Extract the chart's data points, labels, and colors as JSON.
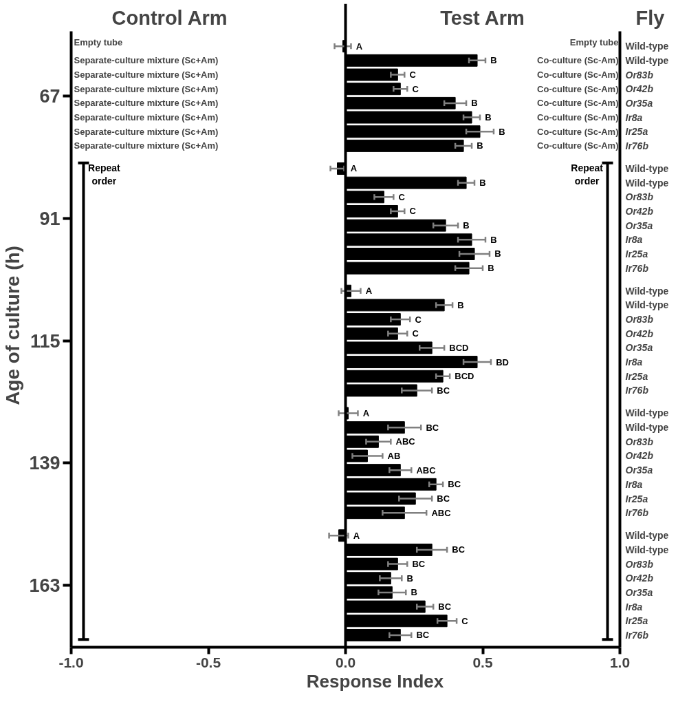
{
  "chart_data": {
    "type": "bar",
    "orientation": "horizontal",
    "xlabel": "Response Index",
    "ylabel": "Age of culture (h)",
    "xlim": [
      -1,
      1
    ],
    "xticks": [
      {
        "value": -1,
        "label": "-1.0"
      },
      {
        "value": -0.5,
        "label": "-0.5"
      },
      {
        "value": 0,
        "label": "0.0"
      },
      {
        "value": 0.5,
        "label": "0.5"
      },
      {
        "value": 1,
        "label": "1.0"
      }
    ],
    "categories": [
      "Wild-type",
      "Wild-type",
      "Or83b",
      "Or42b",
      "Or35a",
      "Ir8a",
      "Ir25a",
      "Ir76b",
      "Wild-type",
      "Wild-type",
      "Or83b",
      "Or42b",
      "Or35a",
      "Ir8a",
      "Ir25a",
      "Ir76b",
      "Wild-type",
      "Wild-type",
      "Or83b",
      "Or42b",
      "Or35a",
      "Ir8a",
      "Ir25a",
      "Ir76b",
      "Wild-type",
      "Wild-type",
      "Or83b",
      "Or42b",
      "Or35a",
      "Ir8a",
      "Ir25a",
      "Ir76b",
      "Wild-type",
      "Wild-type",
      "Or83b",
      "Or42b",
      "Or35a",
      "Ir8a",
      "Ir25a",
      "Ir76b"
    ],
    "values": [
      -0.01,
      0.48,
      0.19,
      0.2,
      0.4,
      0.46,
      0.49,
      0.43,
      -0.03,
      0.44,
      0.14,
      0.19,
      0.365,
      0.46,
      0.47,
      0.45,
      0.02,
      0.36,
      0.2,
      0.19,
      0.315,
      0.48,
      0.355,
      0.26,
      0.01,
      0.215,
      0.12,
      0.08,
      0.2,
      0.33,
      0.255,
      0.215,
      -0.025,
      0.315,
      0.19,
      0.165,
      0.17,
      0.29,
      0.37,
      0.2
    ],
    "errors": [
      0.03,
      0.03,
      0.025,
      0.025,
      0.04,
      0.03,
      0.05,
      0.03,
      0.025,
      0.03,
      0.035,
      0.025,
      0.045,
      0.05,
      0.055,
      0.05,
      0.035,
      0.03,
      0.035,
      0.035,
      0.045,
      0.05,
      0.025,
      0.055,
      0.035,
      0.06,
      0.045,
      0.055,
      0.04,
      0.025,
      0.06,
      0.08,
      0.035,
      0.055,
      0.035,
      0.04,
      0.05,
      0.03,
      0.035,
      0.04
    ],
    "value_labels": [
      "A",
      "B",
      "C",
      "C",
      "B",
      "B",
      "B",
      "B",
      "A",
      "B",
      "C",
      "C",
      "B",
      "B",
      "B",
      "B",
      "A",
      "B",
      "C",
      "C",
      "BCD",
      "BD",
      "BCD",
      "BC",
      "A",
      "BC",
      "ABC",
      "AB",
      "ABC",
      "BC",
      "BC",
      "ABC",
      "A",
      "BC",
      "BC",
      "B",
      "B",
      "BC",
      "C",
      "BC"
    ],
    "color": "#000000",
    "ref_lines": [
      {
        "axis": "x",
        "value": 0
      }
    ],
    "grid": false,
    "annotations": [
      "Control Arm",
      "Test Arm",
      "Fly",
      "Empty tube",
      "Separate-culture mixture (Sc+Am)",
      "Separate-culture mixture (Sc+Am)",
      "Separate-culture mixture (Sc+Am)",
      "Separate-culture mixture (Sc+Am)",
      "Separate-culture mixture (Sc+Am)",
      "Separate-culture mixture (Sc+Am)",
      "Separate-culture mixture (Sc+Am)",
      "Empty tube",
      "Co-culture (Sc-Am)",
      "Co-culture (Sc-Am)",
      "Co-culture (Sc-Am)",
      "Co-culture (Sc-Am)",
      "Co-culture (Sc-Am)",
      "Co-culture (Sc-Am)",
      "Co-culture (Sc-Am)",
      "Repeat order",
      "Repeat order",
      "67",
      "91",
      "115",
      "139",
      "163"
    ]
  }
}
